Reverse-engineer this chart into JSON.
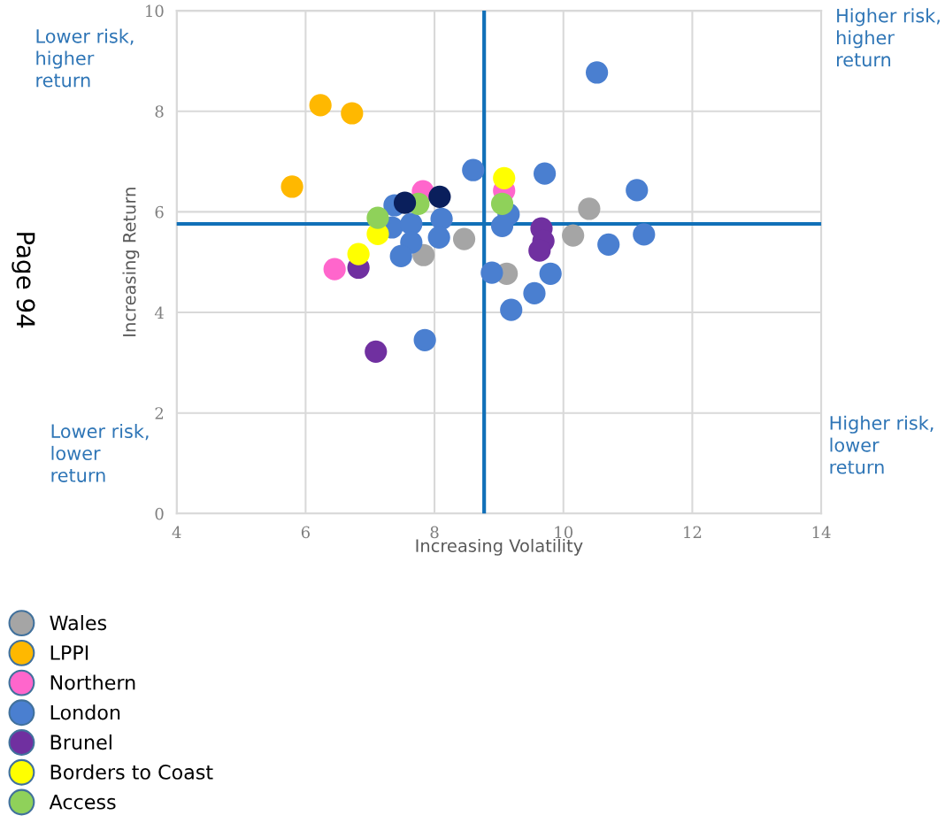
{
  "chart_data": {
    "type": "scatter",
    "xlabel": "Increasing Volatility",
    "ylabel": "Increasing Return",
    "xlim": [
      4,
      14
    ],
    "xticks": [
      4,
      6,
      8,
      10,
      12,
      14
    ],
    "ylim": [
      0,
      10
    ],
    "yticks": [
      0,
      2,
      4,
      6,
      8,
      10
    ],
    "grid": true,
    "legend": "bottom left",
    "marker": "circle",
    "ref_lines": [
      {
        "axis": "x",
        "value": 8.77,
        "color": "#1170b8"
      },
      {
        "axis": "y",
        "value": 5.76,
        "color": "#1170b8"
      }
    ],
    "annotations": [
      "Lower risk, higher return",
      "Higher risk, higher return",
      "Lower risk, lower return",
      "Higher risk, lower return",
      "Page 94"
    ],
    "series": [
      {
        "name": "Wales",
        "color": "#a5a5a5",
        "x": [
          7.83,
          8.46,
          9.12,
          10.15,
          10.4
        ],
        "values": [
          5.14,
          5.46,
          4.77,
          5.53,
          6.06
        ]
      },
      {
        "name": "LPPI",
        "color": "#ffb800",
        "x": [
          6.23,
          6.72,
          5.79
        ],
        "values": [
          8.12,
          7.96,
          6.5
        ]
      },
      {
        "name": "Northern",
        "color": "#ff66cc",
        "x": [
          6.45,
          7.82,
          9.08
        ],
        "values": [
          4.86,
          6.41,
          6.42
        ]
      },
      {
        "name": "London",
        "color": "#4a7fd0",
        "x": [
          7.38,
          7.34,
          7.64,
          7.64,
          7.48,
          8.11,
          8.07,
          7.85,
          8.6,
          9.15,
          9.05,
          8.89,
          9.19,
          9.55,
          9.8,
          9.71,
          10.52,
          10.7,
          11.14,
          11.25
        ],
        "values": [
          6.13,
          5.69,
          5.76,
          5.39,
          5.12,
          5.86,
          5.49,
          3.45,
          6.83,
          5.95,
          5.72,
          4.79,
          4.05,
          4.38,
          4.77,
          6.76,
          8.77,
          5.35,
          6.43,
          5.55
        ]
      },
      {
        "name": "Brunel",
        "color": "#7030a0",
        "x": [
          6.82,
          7.09,
          9.66,
          9.69,
          9.63
        ],
        "values": [
          4.89,
          3.22,
          5.67,
          5.42,
          5.23
        ]
      },
      {
        "name": "Borders to Coast",
        "color": "#ffff00",
        "x": [
          6.82,
          7.12,
          9.08
        ],
        "values": [
          5.16,
          5.56,
          6.67
        ]
      },
      {
        "name": "Access",
        "color": "#8fd15a",
        "x": [
          7.12,
          7.75,
          9.05
        ],
        "values": [
          5.88,
          6.16,
          6.16
        ]
      },
      {
        "color": "#0a1f5c",
        "x": [
          7.54,
          8.08
        ],
        "values": [
          6.18,
          6.3
        ]
      }
    ]
  }
}
